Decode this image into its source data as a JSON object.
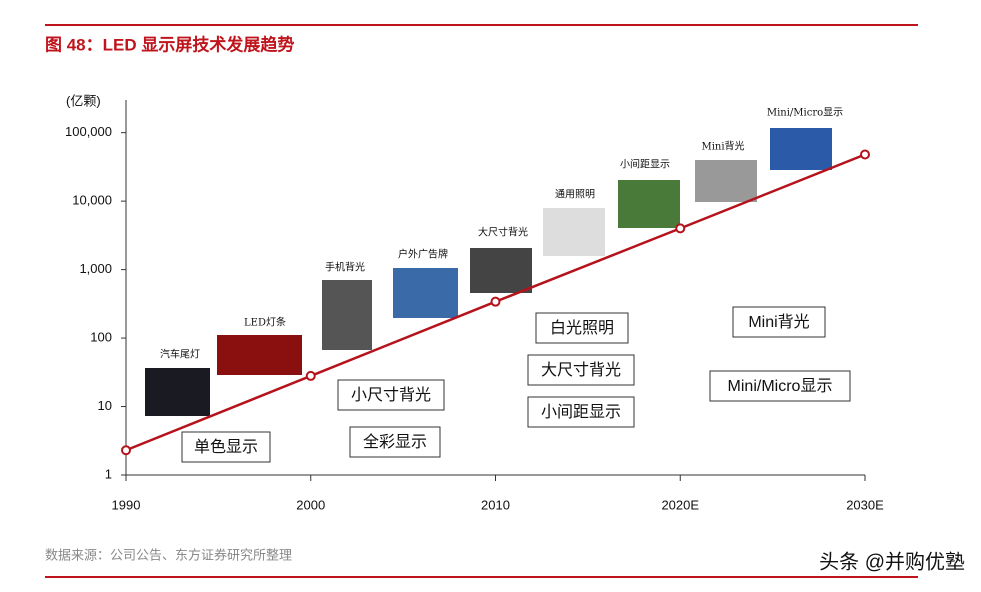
{
  "chart_data": {
    "type": "line",
    "title": "图 48：LED 显示屏技术发展趋势",
    "y_unit": "(亿颗)",
    "categories": [
      "1990",
      "2000",
      "2010",
      "2020E",
      "2030E"
    ],
    "series": [
      {
        "name": "LED",
        "color": "#b5121b",
        "values": [
          2.3,
          28,
          340,
          4000,
          48000
        ]
      }
    ],
    "log_scale": true,
    "ylim": [
      1,
      300000
    ],
    "yticks": [
      1,
      10,
      100,
      {
        "value": 1000,
        "label": "1,000"
      },
      {
        "value": 10000,
        "label": "10,000"
      },
      {
        "value": 100000,
        "label": "100,000"
      }
    ],
    "image_labels": [
      "汽车尾灯",
      "LED灯条",
      "手机背光",
      "户外广告牌",
      "大尺寸背光",
      "通用照明",
      "小间距显示",
      "Mini背光",
      "Mini/Micro显示"
    ],
    "box_labels": [
      "单色显示",
      "小尺寸背光",
      "全彩显示",
      "白光照明",
      "大尺寸背光",
      "小间距显示",
      "Mini背光",
      "Mini/Micro显示"
    ],
    "source": "数据来源：公司公告、东方证券研究所整理",
    "watermark": "头条 @并购优塾"
  }
}
